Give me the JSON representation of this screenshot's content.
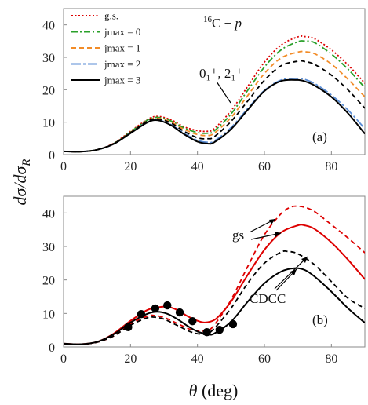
{
  "chart_data": [
    {
      "type": "line",
      "panel_label": "(a)",
      "title": "16C + p",
      "title_sup": "16",
      "title_main": "C + ",
      "title_p": "p",
      "xlim": [
        0,
        90
      ],
      "ylim": [
        0,
        45
      ],
      "xticks": [
        0,
        20,
        40,
        60,
        80
      ],
      "yticks": [
        0,
        10,
        20,
        30,
        40
      ],
      "grid": false,
      "legend_position": "top-left",
      "annotation": "0₁⁺, 2₁⁺",
      "series": [
        {
          "name": "g.s.",
          "color": "#dd0000",
          "dash": "dotted",
          "x": [
            0,
            5,
            10,
            15,
            20,
            25,
            28,
            32,
            36,
            40,
            43,
            45,
            50,
            55,
            60,
            65,
            70,
            72,
            75,
            80,
            85,
            90
          ],
          "y": [
            1.0,
            0.9,
            1.5,
            3.5,
            7.2,
            10.8,
            11.8,
            10.8,
            8.6,
            7.4,
            7.2,
            8.0,
            13.5,
            21.0,
            28.5,
            33.8,
            36.3,
            36.4,
            35.7,
            32.3,
            27.6,
            22.0
          ]
        },
        {
          "name": "jmax = 0",
          "color": "#2aa02a",
          "dash": "dashdot",
          "x": [
            0,
            5,
            10,
            15,
            20,
            25,
            28,
            32,
            36,
            40,
            43,
            45,
            50,
            55,
            60,
            65,
            70,
            72,
            75,
            80,
            85,
            90
          ],
          "y": [
            1.0,
            0.9,
            1.5,
            3.4,
            7.0,
            10.6,
            11.5,
            10.4,
            8.2,
            6.8,
            6.6,
            7.3,
            12.5,
            19.8,
            27.0,
            32.3,
            34.8,
            35.0,
            34.5,
            31.0,
            26.3,
            20.6
          ]
        },
        {
          "name": "jmax = 1",
          "color": "#f28c28",
          "dash": "dashed",
          "x": [
            0,
            5,
            10,
            15,
            20,
            25,
            28,
            32,
            36,
            40,
            43,
            45,
            50,
            55,
            60,
            65,
            70,
            72,
            75,
            80,
            85,
            90
          ],
          "y": [
            1.0,
            0.9,
            1.5,
            3.4,
            6.9,
            10.4,
            11.2,
            10.1,
            7.8,
            6.2,
            5.9,
            6.6,
            11.4,
            18.2,
            25.0,
            29.8,
            31.6,
            31.7,
            31.1,
            27.9,
            23.2,
            17.8
          ]
        },
        {
          "name": "jmax = 2",
          "color": "#5b8ed6",
          "dash": "dashdotlong",
          "x": [
            0,
            5,
            10,
            15,
            20,
            25,
            28,
            32,
            36,
            40,
            43,
            45,
            50,
            55,
            60,
            65,
            70,
            72,
            75,
            80,
            85,
            90
          ],
          "y": [
            1.0,
            0.9,
            1.5,
            3.3,
            6.7,
            10.0,
            10.7,
            9.3,
            6.6,
            4.4,
            3.8,
            4.2,
            8.3,
            14.2,
            19.8,
            23.0,
            23.5,
            23.2,
            21.9,
            18.4,
            13.7,
            8.0
          ]
        },
        {
          "name": "jmax = 3",
          "color": "#000000",
          "dash": "solid",
          "x": [
            0,
            5,
            10,
            15,
            20,
            25,
            28,
            32,
            36,
            40,
            43,
            45,
            50,
            55,
            60,
            65,
            70,
            72,
            75,
            80,
            85,
            90
          ],
          "y": [
            1.0,
            0.9,
            1.5,
            3.3,
            6.6,
            9.9,
            10.6,
            9.1,
            6.3,
            4.0,
            3.4,
            3.8,
            7.8,
            13.8,
            19.6,
            22.7,
            23.0,
            22.6,
            21.3,
            17.8,
            12.7,
            6.4
          ]
        },
        {
          "name": "0₁⁺, 2₁⁺",
          "color": "#000000",
          "dash": "dashed",
          "legend": false,
          "x": [
            0,
            5,
            10,
            15,
            20,
            25,
            28,
            32,
            36,
            40,
            43,
            45,
            50,
            55,
            60,
            65,
            70,
            72,
            75,
            80,
            85,
            90
          ],
          "y": [
            1.0,
            0.9,
            1.5,
            3.4,
            6.8,
            10.3,
            11.0,
            9.8,
            7.2,
            5.2,
            4.9,
            5.5,
            10.2,
            16.5,
            22.9,
            27.4,
            28.8,
            28.7,
            27.8,
            24.5,
            19.9,
            14.3
          ]
        }
      ]
    },
    {
      "type": "line",
      "panel_label": "(b)",
      "xlim": [
        0,
        90
      ],
      "ylim": [
        0,
        45
      ],
      "xticks": [
        0,
        20,
        40,
        60,
        80
      ],
      "yticks": [
        0,
        10,
        20,
        30,
        40
      ],
      "grid": false,
      "annotations": [
        "gs",
        "CDCC"
      ],
      "series": [
        {
          "color": "#dd0000",
          "dash": "dashed",
          "x": [
            0,
            5,
            10,
            15,
            20,
            25,
            27,
            30,
            34,
            38,
            41,
            43,
            45,
            50,
            55,
            60,
            65,
            68,
            70,
            72,
            75,
            80,
            85,
            90
          ],
          "y": [
            1.0,
            0.8,
            1.4,
            3.3,
            6.9,
            9.2,
            9.4,
            8.8,
            7.0,
            5.2,
            4.7,
            5.0,
            6.5,
            14.0,
            24.0,
            33.5,
            39.8,
            41.8,
            42.0,
            41.7,
            40.4,
            36.5,
            32.5,
            28.1
          ]
        },
        {
          "color": "#dd0000",
          "dash": "solid",
          "x": [
            0,
            5,
            10,
            15,
            20,
            25,
            28,
            31,
            34,
            37,
            40,
            42,
            44,
            46,
            50,
            55,
            60,
            65,
            70,
            72,
            75,
            80,
            85,
            90
          ],
          "y": [
            1.0,
            0.8,
            1.5,
            4.0,
            7.8,
            11.0,
            11.8,
            12.0,
            11.0,
            9.2,
            7.8,
            7.3,
            7.6,
            8.8,
            13.5,
            21.5,
            29.0,
            34.2,
            36.3,
            36.3,
            35.2,
            31.2,
            26.0,
            20.2
          ]
        },
        {
          "color": "#000000",
          "dash": "dashed",
          "x": [
            0,
            5,
            10,
            15,
            20,
            25,
            27,
            30,
            34,
            38,
            41,
            43,
            45,
            50,
            55,
            60,
            65,
            67,
            70,
            75,
            80,
            85,
            90
          ],
          "y": [
            1.0,
            0.8,
            1.4,
            3.3,
            6.5,
            8.7,
            8.9,
            8.3,
            6.4,
            4.5,
            3.8,
            4.0,
            5.5,
            11.5,
            19.0,
            25.0,
            28.3,
            28.5,
            27.8,
            24.5,
            19.5,
            14.5,
            11.5
          ]
        },
        {
          "color": "#000000",
          "dash": "solid",
          "x": [
            0,
            5,
            10,
            15,
            20,
            25,
            28,
            31,
            34,
            37,
            40,
            43,
            45,
            50,
            55,
            60,
            65,
            69,
            72,
            75,
            80,
            85,
            90
          ],
          "y": [
            1.0,
            0.8,
            1.5,
            3.8,
            7.3,
            9.9,
            10.5,
            9.9,
            8.3,
            6.3,
            4.6,
            3.8,
            4.0,
            7.5,
            13.5,
            19.0,
            22.5,
            23.5,
            23.0,
            21.0,
            16.5,
            11.5,
            7.2
          ]
        },
        {
          "type": "scatter",
          "color": "#000000",
          "x": [
            19.3,
            23.2,
            27.4,
            31.0,
            34.7,
            38.5,
            42.8,
            46.6,
            50.6
          ],
          "y": [
            5.9,
            9.8,
            11.5,
            12.4,
            10.3,
            7.7,
            4.4,
            5.1,
            6.8
          ]
        }
      ]
    }
  ],
  "axes": {
    "ylabel_main": "dσ/dσ",
    "ylabel_sub": "R",
    "xlabel_theta": "θ",
    "xlabel_unit": "(deg)"
  }
}
